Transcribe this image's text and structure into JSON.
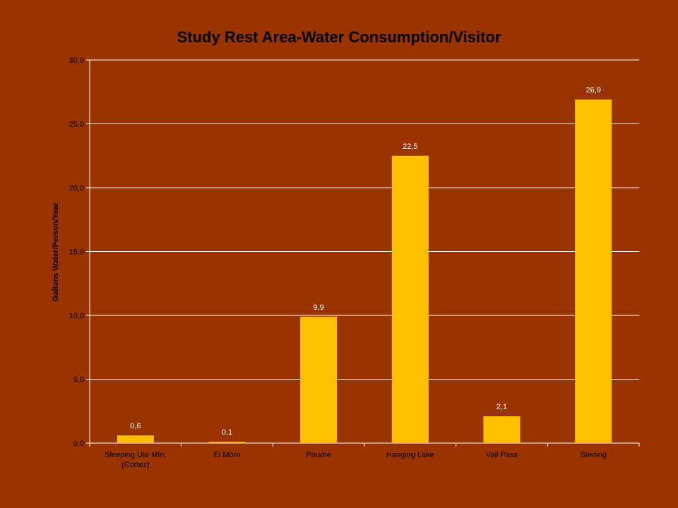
{
  "chart_data": {
    "type": "bar",
    "title": "Study Rest Area-Water Consumption/Visitor",
    "xlabel": "",
    "ylabel": "Gallons Water/Person/Year",
    "categories": [
      [
        "Sleeping Ute Mtn.",
        "(Cortez)"
      ],
      [
        "El Moro"
      ],
      [
        "Poudre"
      ],
      [
        "Hanging Lake"
      ],
      [
        "Vail Pass"
      ],
      [
        "Sterling"
      ]
    ],
    "values": [
      0.6,
      0.1,
      9.9,
      22.5,
      2.1,
      26.9
    ],
    "data_labels": [
      "0,6",
      "0,1",
      "9,9",
      "22,5",
      "2,1",
      "26,9"
    ],
    "ylim": [
      0,
      30
    ],
    "yticks": [
      0,
      5,
      10,
      15,
      20,
      25,
      30
    ],
    "ytick_labels": [
      "0,0",
      "5,0",
      "10,0",
      "15,0",
      "20,0",
      "25,0",
      "30,0"
    ],
    "grid": true,
    "legend": "none",
    "colors": {
      "background": "#993300",
      "bar": "#FFC000",
      "grid": "#FFFFFF",
      "text": "#000000",
      "data_label": "#FFFFFF"
    }
  }
}
